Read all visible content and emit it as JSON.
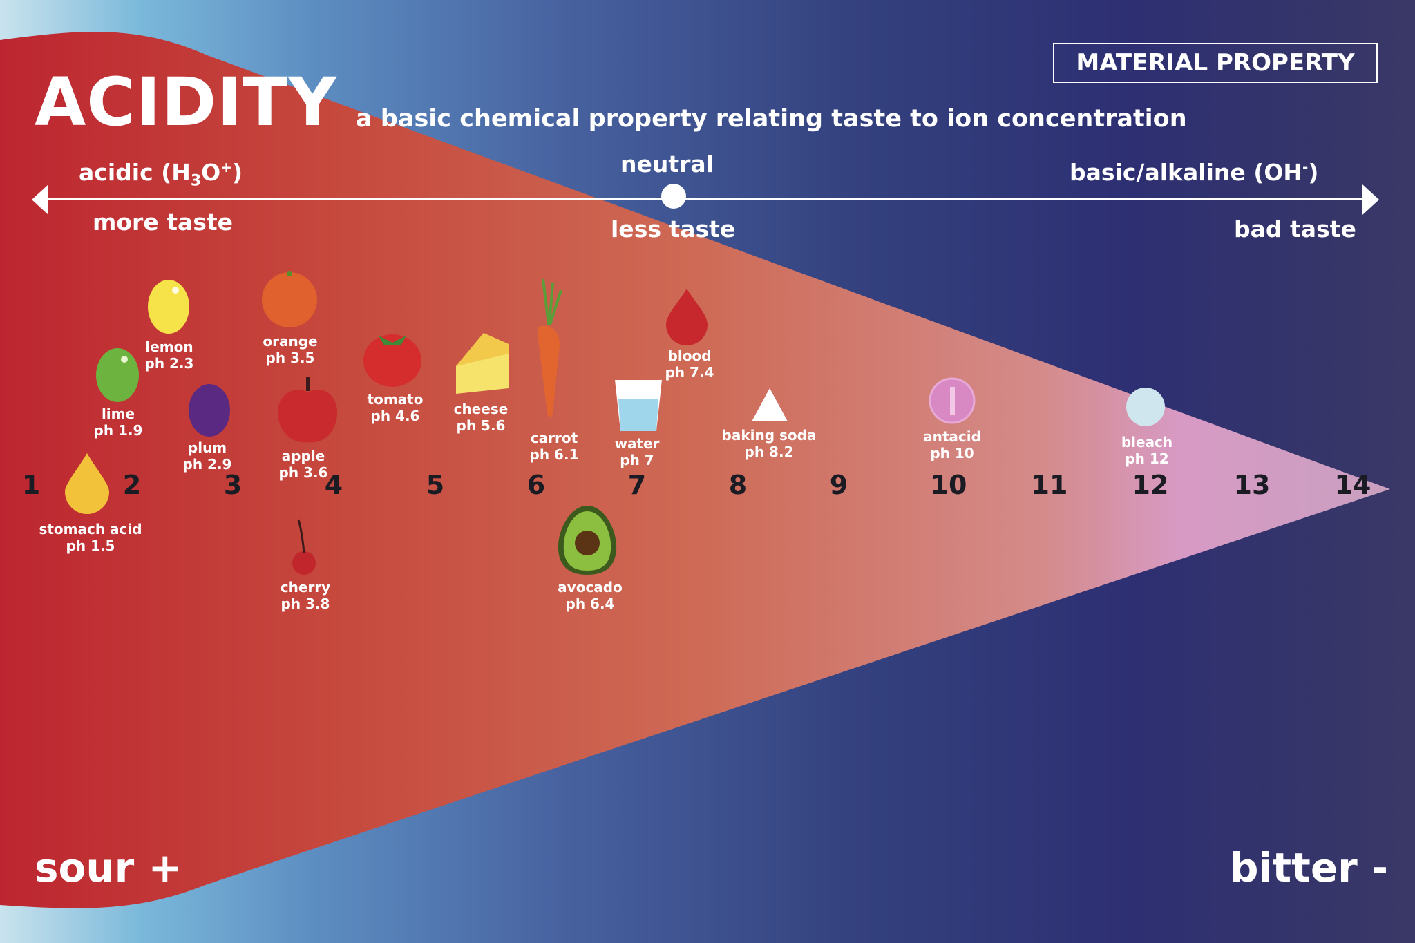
{
  "header": {
    "title": "ACIDITY",
    "subtitle": "a basic chemical property relating taste to ion concentration",
    "badge": "MATERIAL PROPERTY"
  },
  "scale": {
    "acidic_label": "acidic (H",
    "acidic_sub": "3",
    "acidic_mid": "O",
    "acidic_sup": "+",
    "acidic_end": ")",
    "neutral_label": "neutral",
    "basic_label": "basic/alkaline  (OH",
    "basic_sup": "-",
    "basic_end": ")",
    "more_taste": "more taste",
    "less_taste": "less taste",
    "bad_taste": "bad taste"
  },
  "ticks": [
    "1",
    "2",
    "3",
    "4",
    "5",
    "6",
    "7",
    "8",
    "9",
    "10",
    "11",
    "12",
    "13",
    "14"
  ],
  "items": [
    {
      "name": "stomach acid",
      "ph": "ph 1.5",
      "icon": "drop-icon",
      "color": "#f2c23a"
    },
    {
      "name": "lime",
      "ph": "ph 1.9",
      "icon": "lime-icon",
      "color": "#6cb33f"
    },
    {
      "name": "lemon",
      "ph": "ph 2.3",
      "icon": "lemon-icon",
      "color": "#f6e34a"
    },
    {
      "name": "plum",
      "ph": "ph 2.9",
      "icon": "plum-icon",
      "color": "#5a2a82"
    },
    {
      "name": "orange",
      "ph": "ph 3.5",
      "icon": "orange-icon",
      "color": "#e0612d"
    },
    {
      "name": "apple",
      "ph": "ph 3.6",
      "icon": "apple-icon",
      "color": "#c92a2e"
    },
    {
      "name": "cherry",
      "ph": "ph 3.8",
      "icon": "cherry-icon",
      "color": "#c0262c"
    },
    {
      "name": "tomato",
      "ph": "ph 4.6",
      "icon": "tomato-icon",
      "color": "#d52d2d"
    },
    {
      "name": "cheese",
      "ph": "ph 5.6",
      "icon": "cheese-icon",
      "color": "#f6e36b"
    },
    {
      "name": "carrot",
      "ph": "ph 6.1",
      "icon": "carrot-icon",
      "color": "#e2642f"
    },
    {
      "name": "avocado",
      "ph": "ph 6.4",
      "icon": "avocado-icon",
      "color": "#8cbf3f"
    },
    {
      "name": "water",
      "ph": "ph 7",
      "icon": "glass-icon",
      "color": "#bfe4f2"
    },
    {
      "name": "blood",
      "ph": "ph 7.4",
      "icon": "drop-icon",
      "color": "#c6282d"
    },
    {
      "name": "baking soda",
      "ph": "ph 8.2",
      "icon": "triangle-icon",
      "color": "#ffffff"
    },
    {
      "name": "antacid",
      "ph": "ph 10",
      "icon": "pill-icon",
      "color": "#d889c4"
    },
    {
      "name": "bleach",
      "ph": "ph 12",
      "icon": "circle-icon",
      "color": "#cfe6ee"
    }
  ],
  "footer": {
    "sour": "sour +",
    "bitter": "bitter -"
  },
  "colors": {
    "triangle_start": "#c0282f",
    "triangle_end": "#d99ac7",
    "ink": "#1b1b24"
  }
}
